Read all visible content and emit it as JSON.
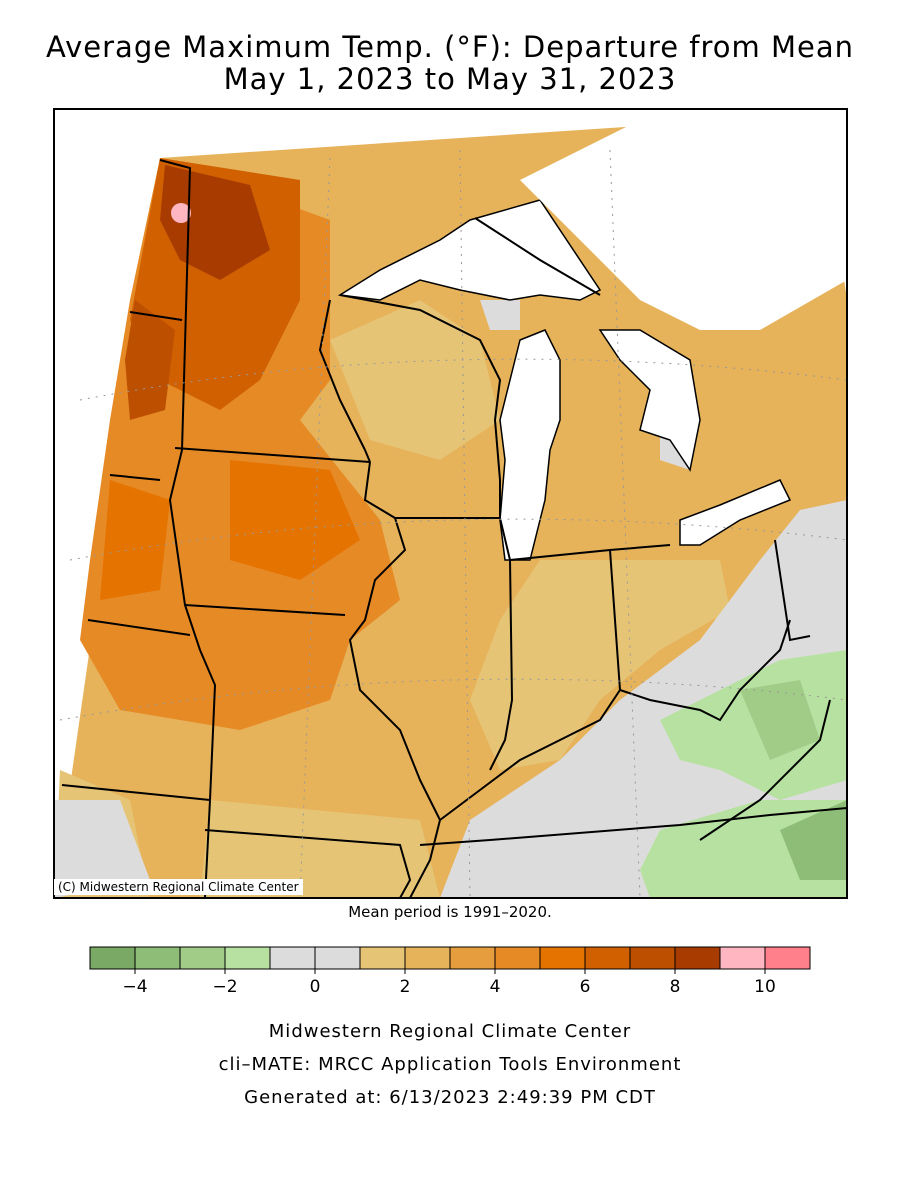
{
  "title": "Average Maximum Temp. (°F): Departure from Mean",
  "subtitle": "May 1, 2023 to May 31, 2023",
  "credit": "(C) Midwestern Regional Climate Center",
  "mean_period": "Mean period is 1991–2020.",
  "legend": {
    "colors": [
      "#7aa966",
      "#8dbd76",
      "#a0cc88",
      "#b7e1a0",
      "#dcdcdc",
      "#dcdcdc",
      "#e6c476",
      "#e6b25a",
      "#e69d3e",
      "#e68a26",
      "#e57300",
      "#d06000",
      "#bd4f00",
      "#a83c00",
      "#ffb6c1",
      "#ff7f8a"
    ],
    "tick_labels": [
      "−4",
      "−2",
      "0",
      "2",
      "4",
      "6",
      "8",
      "10"
    ]
  },
  "footer": {
    "line1": "Midwestern Regional Climate Center",
    "line2": "cli–MATE: MRCC Application Tools Environment",
    "line3": "Generated at: 6/13/2023 2:49:39 PM CDT"
  }
}
